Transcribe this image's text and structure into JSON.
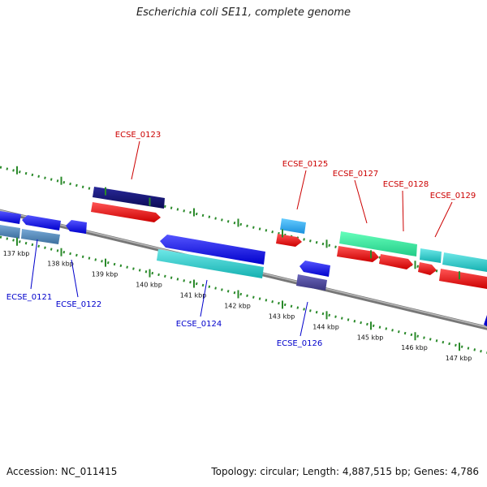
{
  "title": "Escherichia coli SE11, complete genome",
  "footer": {
    "accession": "Accession: NC_011415",
    "summary": "Topology: circular; Length: 4,887,515 bp; Genes: 4,786"
  },
  "colors": {
    "label_top": "#cc0000",
    "label_bottom": "#0000cc",
    "tick": "#2a8a2a",
    "backbone": "#888888"
  },
  "ticks": [
    {
      "label": "137 kbp"
    },
    {
      "label": "138 kbp"
    },
    {
      "label": "139 kbp"
    },
    {
      "label": "140 kbp"
    },
    {
      "label": "141 kbp"
    },
    {
      "label": "142 kbp"
    },
    {
      "label": "143 kbp"
    },
    {
      "label": "144 kbp"
    },
    {
      "label": "145 kbp"
    },
    {
      "label": "146 kbp"
    },
    {
      "label": "147 kbp"
    }
  ],
  "gene_labels": [
    {
      "text": "ECSE_0121",
      "side": "bottom"
    },
    {
      "text": "ECSE_0122",
      "side": "bottom"
    },
    {
      "text": "ECSE_0123",
      "side": "top"
    },
    {
      "text": "ECSE_0124",
      "side": "bottom"
    },
    {
      "text": "ECSE_0125",
      "side": "top"
    },
    {
      "text": "ECSE_0126",
      "side": "bottom"
    },
    {
      "text": "ECSE_0127",
      "side": "top"
    },
    {
      "text": "ECSE_0128",
      "side": "top"
    },
    {
      "text": "ECSE_0129",
      "side": "top"
    }
  ]
}
